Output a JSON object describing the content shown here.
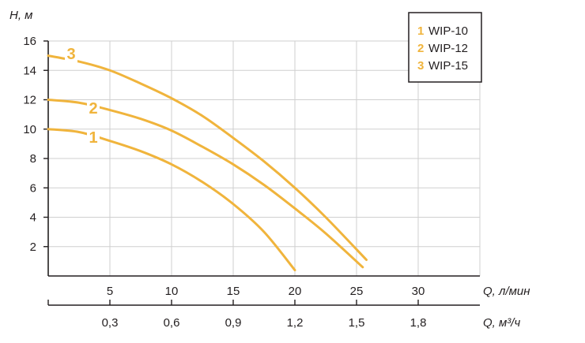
{
  "chart_data": {
    "type": "line",
    "ylabel": "H, м",
    "xlabel": "Q, л/мин",
    "x2label": "Q, м³/ч",
    "xlim": [
      0,
      35
    ],
    "ylim": [
      0,
      16
    ],
    "x_ticks": [
      5,
      10,
      15,
      20,
      25,
      30
    ],
    "y_ticks": [
      2,
      4,
      6,
      8,
      10,
      12,
      14,
      16
    ],
    "x2_ticks": [
      "0,3",
      "0,6",
      "0,9",
      "1,2",
      "1,5",
      "1,8"
    ],
    "x2_tick_positions": [
      5,
      10,
      15,
      20,
      25,
      30
    ],
    "grid": true,
    "legend_position": "top-right",
    "series_color": "#f0b43c",
    "series": [
      {
        "name": "WIP-10",
        "label": "1",
        "x": [
          0,
          2.5,
          5,
          7.5,
          10,
          12.5,
          15,
          17.5,
          20
        ],
        "y": [
          10,
          9.8,
          9.2,
          8.5,
          7.6,
          6.4,
          4.9,
          3.0,
          0.4
        ]
      },
      {
        "name": "WIP-12",
        "label": "2",
        "x": [
          0,
          2.5,
          5,
          7.5,
          10,
          12.5,
          15,
          17.5,
          20,
          22.5,
          25.5
        ],
        "y": [
          12,
          11.8,
          11.3,
          10.7,
          9.9,
          8.8,
          7.6,
          6.2,
          4.6,
          2.9,
          0.6
        ]
      },
      {
        "name": "WIP-15",
        "label": "3",
        "x": [
          0,
          2.5,
          5,
          7.5,
          10,
          12.5,
          15,
          17.5,
          20,
          22.5,
          25.8
        ],
        "y": [
          15,
          14.6,
          14.0,
          13.1,
          12.1,
          10.9,
          9.4,
          7.8,
          6.0,
          4.0,
          1.1
        ]
      }
    ]
  }
}
